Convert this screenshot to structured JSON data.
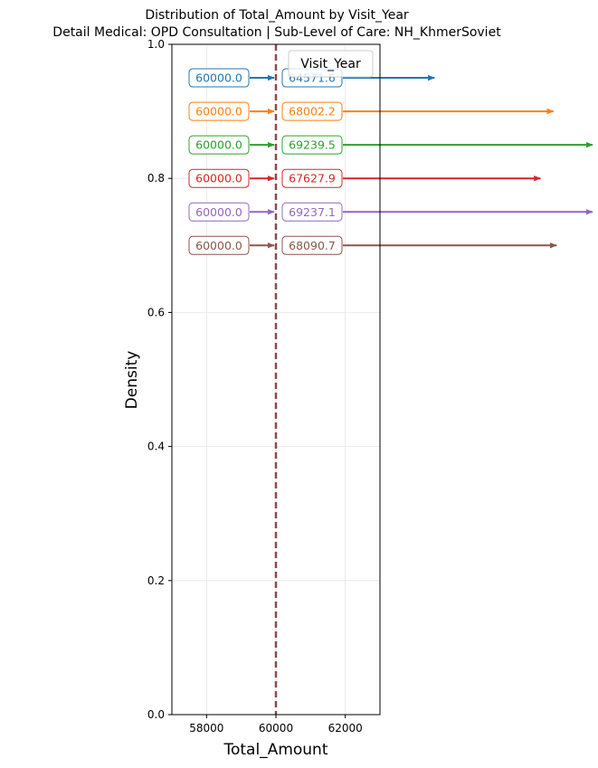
{
  "chart_data": {
    "type": "line",
    "title": "Distribution of Total_Amount by Visit_Year",
    "subtitle": "Detail Medical: OPD Consultation | Sub-Level of Care: NH_KhmerSoviet",
    "xlabel": "Total_Amount",
    "ylabel": "Density",
    "xlim": [
      57000,
      63000
    ],
    "ylim": [
      0,
      1
    ],
    "x_ticks": [
      58000,
      60000,
      62000
    ],
    "x_tick_labels": [
      "58000",
      "60000",
      "62000"
    ],
    "y_ticks": [
      0,
      0.2,
      0.4,
      0.6,
      0.8,
      1.0
    ],
    "y_tick_labels": [
      "0.0",
      "0.2",
      "0.4",
      "0.6",
      "0.8",
      "1.0"
    ],
    "grid": true,
    "legend": {
      "title": "Visit_Year",
      "placement": "top-right"
    },
    "vertical_line": {
      "x": 60000,
      "style": "dashed",
      "color": "#8c4a4a"
    },
    "series": [
      {
        "y": 0.95,
        "median": 60000.0,
        "mean": 64571.6,
        "median_label": "60000.0",
        "mean_label": "64571.6",
        "color": "#1f77b4"
      },
      {
        "y": 0.9,
        "median": 60000.0,
        "mean": 68002.2,
        "median_label": "60000.0",
        "mean_label": "68002.2",
        "color": "#ff7f0e"
      },
      {
        "y": 0.85,
        "median": 60000.0,
        "mean": 69239.5,
        "median_label": "60000.0",
        "mean_label": "69239.5",
        "color": "#2ca02c"
      },
      {
        "y": 0.8,
        "median": 60000.0,
        "mean": 67627.9,
        "median_label": "60000.0",
        "mean_label": "67627.9",
        "color": "#d62728"
      },
      {
        "y": 0.75,
        "median": 60000.0,
        "mean": 69237.1,
        "median_label": "60000.0",
        "mean_label": "69237.1",
        "color": "#9467bd"
      },
      {
        "y": 0.7,
        "median": 60000.0,
        "mean": 68090.7,
        "median_label": "60000.0",
        "mean_label": "68090.7",
        "color": "#8c564b"
      }
    ]
  }
}
